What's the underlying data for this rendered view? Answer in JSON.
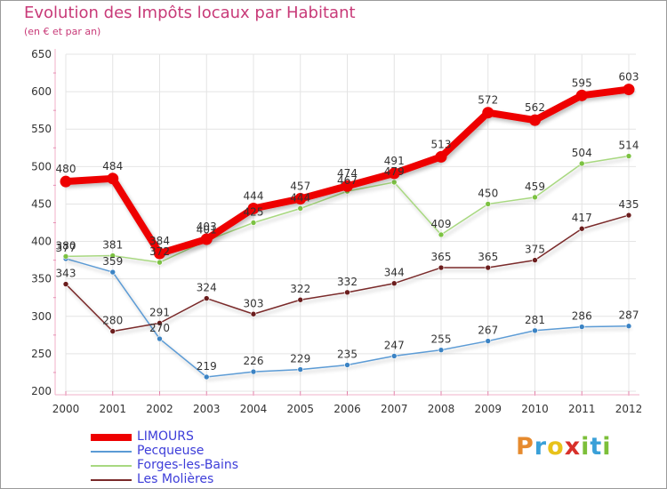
{
  "header": {
    "title": "Evolution des Impôts locaux par Habitant",
    "subtitle": "(en € et par an)"
  },
  "logo": {
    "text": "Proxiti",
    "letters": [
      {
        "char": "P",
        "color": "#e68a2e"
      },
      {
        "char": "r",
        "color": "#3aa0d8"
      },
      {
        "char": "o",
        "color": "#e8c21a"
      },
      {
        "char": "x",
        "color": "#d8302a"
      },
      {
        "char": "i",
        "color": "#7cbf3a"
      },
      {
        "char": "t",
        "color": "#3aa0d8"
      },
      {
        "char": "i",
        "color": "#7cbf3a"
      }
    ]
  },
  "chart_data": {
    "type": "line",
    "title": "Evolution des Impôts locaux par Habitant",
    "subtitle": "(en € et par an)",
    "xlabel": "",
    "ylabel": "",
    "ylim": [
      200,
      650
    ],
    "yticks": [
      200,
      250,
      300,
      350,
      400,
      450,
      500,
      550,
      600,
      650
    ],
    "grid": true,
    "legend_position": "bottom-left",
    "categories": [
      "2000",
      "2001",
      "2002",
      "2003",
      "2004",
      "2005",
      "2006",
      "2007",
      "2008",
      "2009",
      "2010",
      "2011",
      "2012"
    ],
    "series": [
      {
        "name": "LIMOURS",
        "color": "#ee0000",
        "marker_color": "#ee0000",
        "emphasis": true,
        "values": [
          480,
          484,
          384,
          403,
          444,
          457,
          474,
          491,
          513,
          572,
          562,
          595,
          603
        ]
      },
      {
        "name": "Pecqueuse",
        "color": "#5b9bd5",
        "marker_color": "#3b83c4",
        "emphasis": false,
        "values": [
          377,
          359,
          270,
          219,
          226,
          229,
          235,
          247,
          255,
          267,
          281,
          286,
          287
        ]
      },
      {
        "name": "Forges-les-Bains",
        "color": "#a8d880",
        "marker_color": "#7cc242",
        "emphasis": false,
        "values": [
          380,
          381,
          372,
          401,
          425,
          444,
          467,
          479,
          409,
          450,
          459,
          504,
          514
        ]
      },
      {
        "name": "Les Molières",
        "color": "#7a2a2a",
        "marker_color": "#6b1d1d",
        "emphasis": false,
        "values": [
          343,
          280,
          291,
          324,
          303,
          322,
          332,
          344,
          365,
          365,
          375,
          417,
          435
        ]
      }
    ]
  }
}
